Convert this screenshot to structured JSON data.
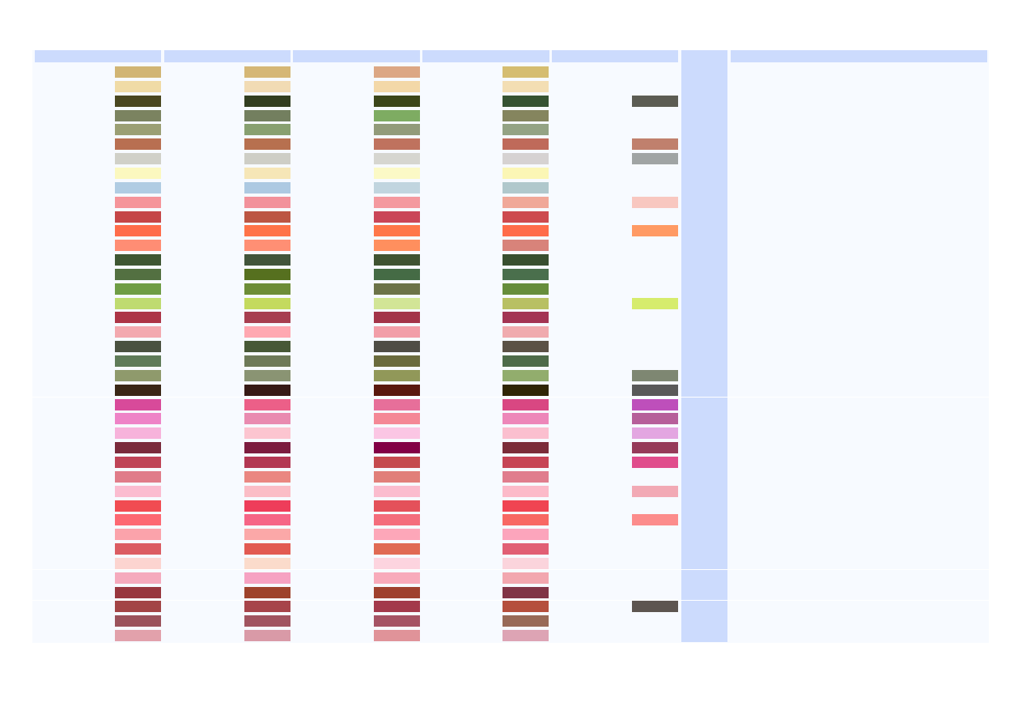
{
  "palette_rows": [
    [
      "#d1b574",
      "#d5b776",
      "#dca784",
      "#d5bd70",
      null
    ],
    [
      "#f0dba6",
      "#f1dbb4",
      "#f3d8a8",
      "#f3deb3",
      null
    ],
    [
      "#4a4720",
      "#323e20",
      "#3c4619",
      "#365332",
      "#5c5c53"
    ],
    [
      "#7b8360",
      "#737f5f",
      "#7eac62",
      "#85855e",
      null
    ],
    [
      "#9b9f74",
      "#88a070",
      "#929b7a",
      "#94a384",
      null
    ],
    [
      "#b86f51",
      "#b7704f",
      "#bf725e",
      "#bf6a5a",
      "#c0806d"
    ],
    [
      "#d0d0c8",
      "#cecec6",
      "#d6d6d0",
      "#d6d2d2",
      "#a0a4a4"
    ],
    [
      "#fbf8bf",
      "#f6e6b7",
      "#fbf9c6",
      "#fbf6b5",
      null
    ],
    [
      "#b0cce3",
      "#adc9e2",
      "#c1d5df",
      "#b0c8cc",
      null
    ],
    [
      "#f5949a",
      "#f2919b",
      "#f4999f",
      "#f0a898",
      "#f8c7c0"
    ],
    [
      "#c54647",
      "#bc5643",
      "#ca4658",
      "#cd4a4e",
      null
    ],
    [
      "#ff6c4a",
      "#ff7348",
      "#ff7749",
      "#ff6c49",
      "#ff9a64"
    ],
    [
      "#ff8d74",
      "#ff8f74",
      "#ff8f5e",
      "#d8837a",
      null
    ],
    [
      "#3e5632",
      "#42553b",
      "#3f5331",
      "#384f2f",
      null
    ],
    [
      "#537041",
      "#56701f",
      "#456b45",
      "#4a6f4c",
      null
    ],
    [
      "#6f9d45",
      "#6d8d37",
      "#6c7348",
      "#668d3b",
      null
    ],
    [
      "#bfdb70",
      "#c4da5e",
      "#d2e596",
      "#b8c063",
      "#d6ec6d"
    ],
    [
      "#ac3446",
      "#a73e50",
      "#a33449",
      "#a33453",
      null
    ],
    [
      "#f3a9af",
      "#ffa8b1",
      "#f29ea8",
      "#f0abae",
      null
    ],
    [
      "#4a5140",
      "#475836",
      "#4f4d45",
      "#5b5145",
      null
    ],
    [
      "#5f7b58",
      "#6e7a58",
      "#6a6b3d",
      "#4e6b49",
      null
    ],
    [
      "#8f9a6c",
      "#8a9473",
      "#919859",
      "#92ad6d",
      "#7e8772"
    ],
    [
      "#3a2716",
      "#371a16",
      "#5a180e",
      "#302606",
      "#595959"
    ],
    [
      "#d84a9a",
      "#ec5f88",
      "#e76f9a",
      "#d94782",
      "#be4fbb"
    ],
    [
      "#ee83c7",
      "#e98bb0",
      "#f48896",
      "#ed87b9",
      "#b65f9a"
    ],
    [
      "#f7b3db",
      "#fcc5d0",
      "#fbc6e4",
      "#fbbfcf",
      "#e3a6e1"
    ],
    [
      "#7a2a3c",
      "#7c1c3f",
      "#820046",
      "#7b2c39",
      "#963a5a"
    ],
    [
      "#bf4357",
      "#b33753",
      "#c54a4e",
      "#c74455",
      "#e04c8c"
    ],
    [
      "#e07c89",
      "#ea8781",
      "#e17f79",
      "#e07d8d",
      null
    ],
    [
      "#fbbcd0",
      "#fbbdc6",
      "#fbbcce",
      "#fcbac9",
      "#f2a9b5"
    ],
    [
      "#f14c52",
      "#ee3d5a",
      "#e4515a",
      "#f04452",
      null
    ],
    [
      "#fd6872",
      "#f66586",
      "#f46d7c",
      "#f86863",
      "#fc8c8c"
    ],
    [
      "#fba3ab",
      "#fba8a8",
      "#fda7b9",
      "#fca5bc",
      null
    ],
    [
      "#db5c62",
      "#e25a52",
      "#e06a53",
      "#e15f74",
      null
    ],
    [
      "#fcd4d0",
      "#fbdbcb",
      "#fdd4df",
      "#fbd4dc",
      null
    ],
    [
      "#f5aabd",
      "#f6a2c2",
      "#f8abbb",
      "#f2a7af",
      null
    ],
    [
      "#98363e",
      "#9e422b",
      "#9f412e",
      "#813446",
      null
    ],
    [
      "#a34445",
      "#a7444a",
      "#a3394b",
      "#b54f3c",
      "#5d5550"
    ],
    [
      "#9b525b",
      "#a15460",
      "#a55364",
      "#986a57",
      null
    ],
    [
      "#e2a1ab",
      "#d99aa7",
      "#e09399",
      "#dda4b4",
      null
    ]
  ]
}
